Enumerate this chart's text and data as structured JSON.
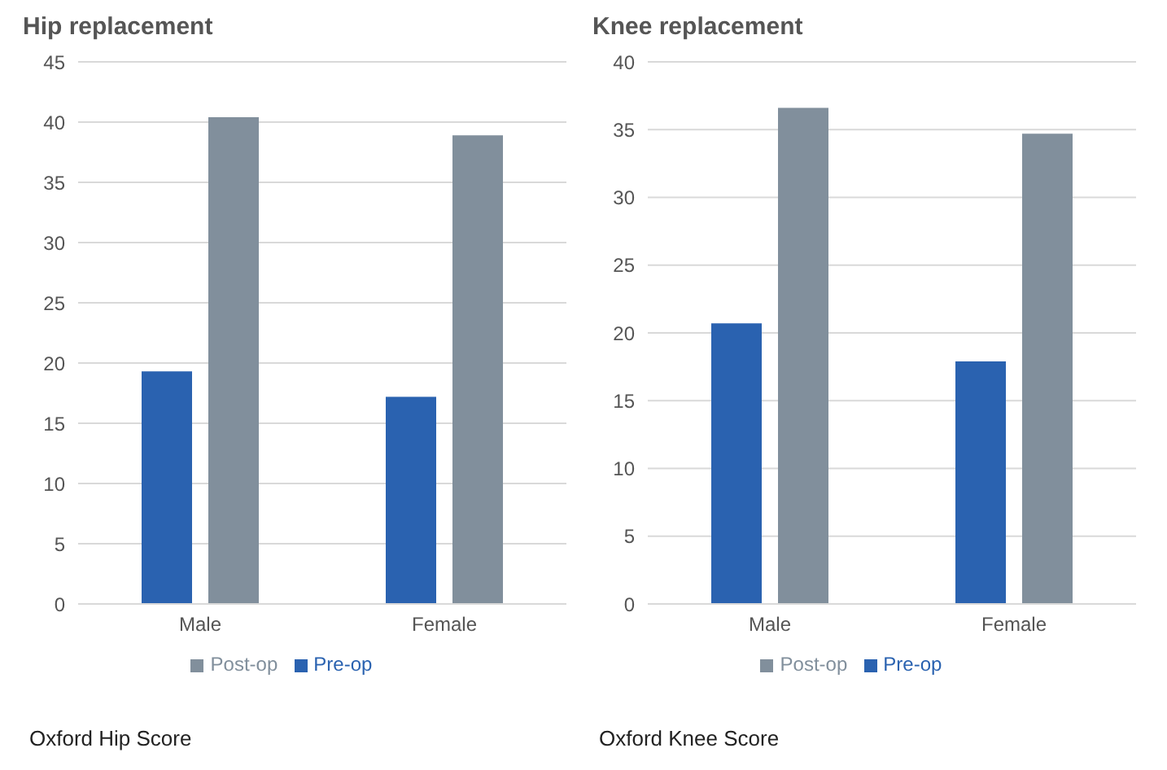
{
  "chart_data": [
    {
      "type": "bar",
      "title": "Hip replacement",
      "categories": [
        "Male",
        "Female"
      ],
      "series": [
        {
          "name": "Pre-op",
          "color": "#2a62b0",
          "values": [
            19.3,
            17.2
          ]
        },
        {
          "name": "Post-op",
          "color": "#818f9c",
          "values": [
            40.4,
            38.9
          ]
        }
      ],
      "ylim": [
        0,
        45
      ],
      "yticks": [
        0,
        5,
        10,
        15,
        20,
        25,
        30,
        35,
        40,
        45
      ],
      "grid": "y",
      "legend": "bottom",
      "annotations": [
        "Oxford Hip Score"
      ]
    },
    {
      "type": "bar",
      "title": "Knee replacement",
      "categories": [
        "Male",
        "Female"
      ],
      "series": [
        {
          "name": "Pre-op",
          "color": "#2a62b0",
          "values": [
            20.7,
            17.9
          ]
        },
        {
          "name": "Post-op",
          "color": "#818f9c",
          "values": [
            36.6,
            34.7
          ]
        }
      ],
      "ylim": [
        0,
        40
      ],
      "yticks": [
        0,
        5,
        10,
        15,
        20,
        25,
        30,
        35,
        40
      ],
      "grid": "y",
      "legend": "bottom",
      "annotations": [
        "Oxford Knee Score"
      ]
    }
  ]
}
